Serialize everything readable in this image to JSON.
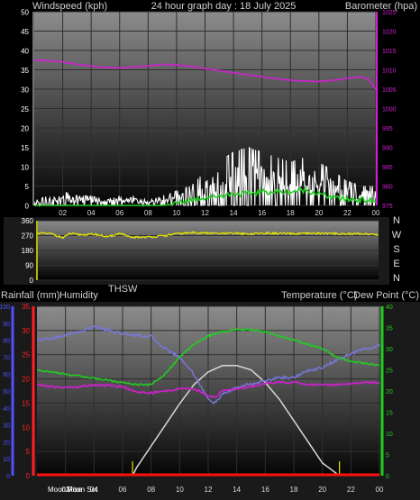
{
  "header": {
    "wind_label": "Windspeed (kph)",
    "title": "24 hour graph day : 18 July 2025",
    "baro_label": "Barometer (hpa)"
  },
  "mid_labels": {
    "rain": "Rainfall (mm)",
    "humidity": "Humidity",
    "thsw": "THSW",
    "temperature": "Temperature (°C)",
    "dewpoint": "Dew Point (°C)"
  },
  "moon": {
    "rise": "Moon Rise",
    "set": "Moon Set"
  },
  "colors": {
    "wind": "#ffffff",
    "wind_avg": "#22cc22",
    "barometer": "#d020d0",
    "direction": "#e8e800",
    "humidity": "#7878e0",
    "temperature": "#22cc22",
    "dewpoint": "#d020d0",
    "rain_axis": "#ff2020",
    "humidity_axis": "#5050ff",
    "temp_axis": "#22cc22",
    "solar": "#d8d8d8",
    "rain": "#ff1010"
  },
  "chart_data": [
    {
      "type": "line",
      "name": "wind_pressure",
      "x_ticks": [
        "02",
        "04",
        "06",
        "08",
        "10",
        "12",
        "14",
        "16",
        "18",
        "20",
        "22",
        "00"
      ],
      "y_left_ticks": [
        0,
        5,
        10,
        15,
        20,
        25,
        30,
        35,
        40,
        45,
        50
      ],
      "ylim_left": [
        0,
        50
      ],
      "y_right_ticks": [
        975,
        980,
        985,
        990,
        995,
        1000,
        1005,
        1010,
        1015,
        1020,
        1025
      ],
      "ylim_right": [
        975,
        1025
      ],
      "xlim_hours": [
        0,
        24
      ],
      "series": [
        {
          "key": "barometer",
          "axis": "right",
          "x": [
            0,
            1,
            2,
            3,
            4,
            5,
            6,
            7,
            8,
            9,
            10,
            11,
            12,
            13,
            14,
            15,
            16,
            17,
            18,
            19,
            20,
            21,
            22,
            23,
            23.5,
            24
          ],
          "values": [
            1012.5,
            1012.3,
            1012,
            1011.5,
            1011,
            1010.6,
            1010.5,
            1010.7,
            1011.1,
            1011.3,
            1011.3,
            1010.9,
            1010.3,
            1009.8,
            1009.2,
            1008.7,
            1008.2,
            1007.7,
            1007.3,
            1007.1,
            1007.0,
            1007.3,
            1007.8,
            1008.2,
            1007.5,
            1005.0
          ]
        },
        {
          "key": "wind_avg",
          "axis": "left",
          "x": [
            0,
            9,
            10,
            11,
            12,
            13,
            14,
            15,
            16,
            17,
            18,
            19,
            20,
            21,
            22,
            23,
            24
          ],
          "values": [
            0,
            0,
            0.5,
            1.5,
            2,
            2.5,
            3,
            3,
            3.5,
            3.5,
            3.5,
            4,
            3,
            2,
            1.5,
            1.5,
            1
          ]
        },
        {
          "key": "wind",
          "axis": "left",
          "x": [
            0,
            1,
            2,
            3,
            4,
            5,
            6,
            7,
            8,
            9,
            10,
            11,
            12,
            13,
            14,
            15,
            16,
            17,
            18,
            19,
            20,
            21,
            22,
            23,
            24
          ],
          "values": [
            1,
            2,
            3,
            2,
            2,
            1,
            2,
            2,
            1,
            2,
            3,
            4,
            7,
            9,
            11,
            12,
            11,
            10,
            9,
            10,
            9,
            7,
            5,
            4,
            4
          ]
        }
      ]
    },
    {
      "type": "scatter",
      "name": "wind_direction",
      "y_ticks": [
        0,
        90,
        180,
        270,
        360
      ],
      "ylim": [
        0,
        360
      ],
      "compass_labels": [
        "N",
        "W",
        "S",
        "E",
        "N"
      ],
      "series": [
        {
          "key": "direction",
          "x": [
            0,
            1,
            1.8,
            2.2,
            3,
            4,
            5,
            5.8,
            6.5,
            7,
            8,
            9,
            9.5,
            10,
            11,
            12,
            13,
            14,
            15,
            16,
            17,
            18,
            19,
            20,
            21,
            22,
            23,
            24
          ],
          "values": [
            285,
            280,
            255,
            282,
            275,
            278,
            262,
            285,
            258,
            260,
            262,
            270,
            278,
            282,
            288,
            285,
            282,
            284,
            280,
            285,
            283,
            281,
            282,
            284,
            282,
            280,
            281,
            275
          ]
        }
      ]
    },
    {
      "type": "line",
      "name": "temp_humidity",
      "xlim_hours": [
        0,
        24
      ],
      "y_left_outer_ticks": [
        0,
        10,
        20,
        30,
        40,
        50,
        60,
        70,
        80,
        90,
        100
      ],
      "ylim_humidity": [
        0,
        100
      ],
      "y_left_inner_ticks": [
        0,
        5,
        10,
        15,
        20,
        25,
        30,
        35
      ],
      "ylim_rain": [
        0,
        35
      ],
      "y_right_ticks": [
        0,
        5,
        10,
        15,
        20,
        25,
        30,
        35,
        40
      ],
      "ylim_temp": [
        0,
        40
      ],
      "x_ticks": [
        "02",
        "04",
        "06",
        "08",
        "10",
        "12",
        "14",
        "16",
        "18",
        "20",
        "22",
        "00"
      ],
      "series": [
        {
          "key": "humidity",
          "axis": "humidity",
          "x": [
            0,
            1,
            2,
            3,
            4,
            5,
            6,
            7,
            8,
            9,
            10,
            11,
            12,
            12.5,
            13,
            14,
            15,
            16,
            17,
            18,
            19,
            20,
            21,
            22,
            23,
            24
          ],
          "values": [
            80,
            81,
            83,
            85,
            88,
            86,
            84,
            83,
            82,
            75,
            70,
            60,
            45,
            43,
            48,
            52,
            54,
            56,
            58,
            58,
            62,
            64,
            68,
            72,
            75,
            77
          ]
        },
        {
          "key": "temperature",
          "axis": "temp",
          "x": [
            0,
            1,
            2,
            3,
            4,
            5,
            6,
            7,
            8,
            9,
            10,
            11,
            12,
            13,
            14,
            15,
            16,
            17,
            18,
            19,
            20,
            21,
            22,
            23,
            24
          ],
          "values": [
            25,
            24.5,
            24,
            23.5,
            23,
            22.5,
            22.0,
            21.5,
            21.5,
            24,
            28,
            31,
            33,
            34,
            34.5,
            34.5,
            34,
            33,
            32,
            31,
            30,
            28,
            27,
            26.5,
            26
          ]
        },
        {
          "key": "dewpoint",
          "axis": "temp",
          "x": [
            0,
            1,
            2,
            3,
            4,
            5,
            6,
            7,
            8,
            9,
            10,
            11,
            12,
            12.5,
            13,
            14,
            15,
            16,
            17,
            18,
            19,
            20,
            21,
            22,
            23,
            24
          ],
          "values": [
            21.5,
            21,
            20.8,
            21,
            21.5,
            21.3,
            21,
            19.8,
            19.5,
            20,
            20.5,
            20.5,
            19,
            18.5,
            20,
            20.5,
            21,
            21.8,
            22,
            22,
            21.5,
            21.5,
            21.5,
            21.8,
            22,
            22
          ]
        },
        {
          "key": "solar",
          "axis": "temp",
          "x": [
            6.7,
            7,
            8,
            9,
            10,
            11,
            12,
            13,
            14,
            15,
            16,
            17,
            18,
            19,
            20,
            21,
            21.2
          ],
          "values": [
            0,
            2,
            7,
            12,
            17,
            21.5,
            24.5,
            26,
            26,
            25,
            22,
            18,
            13,
            8,
            3,
            0.5,
            0
          ]
        }
      ],
      "moon_marks_hours": [
        6.7,
        21.2
      ]
    }
  ]
}
